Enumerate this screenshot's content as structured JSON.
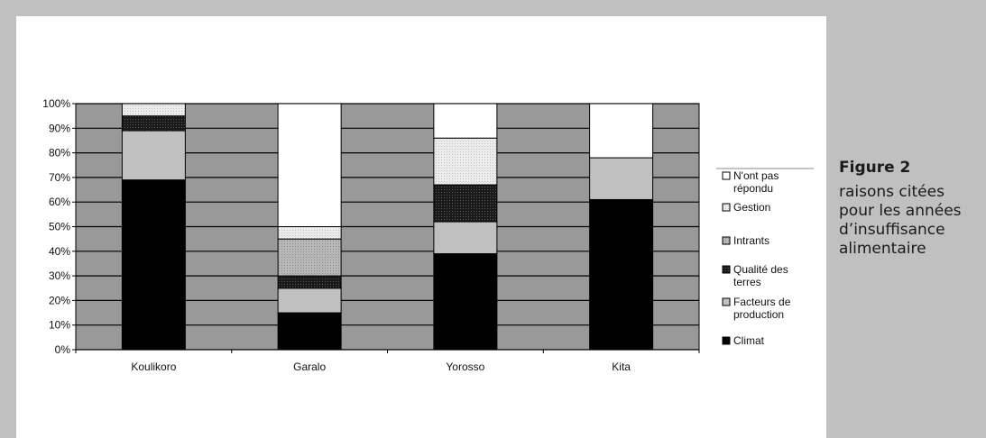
{
  "caption": {
    "title": "Figure 2",
    "text": "raisons citées pour les années d’insuffisance alimentaire"
  },
  "colors": {
    "plot_background": "#999999",
    "gridline": "#000000",
    "page_background": "#c0c0c0"
  },
  "chart_data": {
    "type": "bar",
    "stacked": true,
    "percent": true,
    "categories": [
      "Koulikoro",
      "Garalo",
      "Yorosso",
      "Kita"
    ],
    "y_ticks": [
      "0%",
      "10%",
      "20%",
      "30%",
      "40%",
      "50%",
      "60%",
      "70%",
      "80%",
      "90%",
      "100%"
    ],
    "ylim": [
      0,
      100
    ],
    "grid": true,
    "legend_position": "right",
    "series": [
      {
        "name": "Climat",
        "fill": "#000000",
        "pattern": "none",
        "values": [
          69,
          15,
          39,
          61
        ]
      },
      {
        "name": "Facteurs de production",
        "fill": "#c0c0c0",
        "pattern": "none",
        "values": [
          20,
          10,
          13,
          17
        ]
      },
      {
        "name": "Qualité des terres",
        "fill": "#1a1a1a",
        "pattern": "dots",
        "values": [
          6,
          5,
          15,
          0
        ]
      },
      {
        "name": "Intrants",
        "fill": "#b8b8b8",
        "pattern": "dots",
        "values": [
          0,
          15,
          0,
          0
        ]
      },
      {
        "name": "Gestion",
        "fill": "#ececec",
        "pattern": "dots",
        "values": [
          5,
          5,
          19,
          0
        ]
      },
      {
        "name": "N'ont pas répondu",
        "fill": "#ffffff",
        "pattern": "none",
        "values": [
          0,
          50,
          14,
          22
        ]
      }
    ]
  }
}
